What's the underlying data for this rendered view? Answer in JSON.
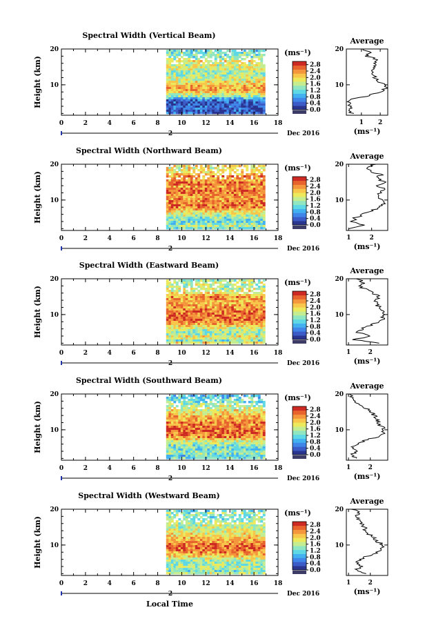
{
  "figure": {
    "xlabel": "Local Time",
    "date_label": "Dec 2016",
    "day_marker": "2",
    "colorbar_unit": "(ms⁻¹)",
    "avg_title": "Average",
    "avg_xlabel": "(ms⁻¹)",
    "ylabel": "Height (km)",
    "colors": {
      "scale": [
        "#2a3590",
        "#3b5cc6",
        "#3f86e8",
        "#43b0f0",
        "#5fd8e6",
        "#8fe6c0",
        "#c4ec90",
        "#ecea5c",
        "#f8c64a",
        "#f4963c",
        "#e8642e",
        "#cc2a22"
      ],
      "bottom_swatch": "#3c3c66",
      "marker": "#2233aa"
    }
  },
  "chart_data": [
    {
      "type": "heatmap",
      "title": "Spectral Width (Vertical Beam)",
      "x_ticks": [
        "0",
        "2",
        "4",
        "6",
        "8",
        "10",
        "12",
        "14",
        "16",
        "18"
      ],
      "xlim": [
        0,
        18
      ],
      "data_x_range": [
        8.7,
        16.8
      ],
      "y_ticks": [
        "10",
        "20"
      ],
      "ylim": [
        1.5,
        20
      ],
      "colorbar_ticks": [
        "0.0",
        "0.4",
        "0.8",
        "1.2",
        "1.6",
        "2.0",
        "2.4",
        "2.8"
      ],
      "colorbar_range": [
        0,
        3.0
      ],
      "profile": [
        [
          2,
          0.5
        ],
        [
          3,
          0.35
        ],
        [
          4,
          0.45
        ],
        [
          5,
          0.3
        ],
        [
          6,
          0.55
        ],
        [
          7,
          1.4
        ],
        [
          8,
          2.0
        ],
        [
          9,
          2.3
        ],
        [
          10,
          2.2
        ],
        [
          11,
          1.9
        ],
        [
          12,
          1.7
        ],
        [
          13,
          1.6
        ],
        [
          14,
          1.5
        ],
        [
          15,
          1.8
        ],
        [
          16,
          1.6
        ],
        [
          17,
          1.9
        ],
        [
          18,
          1.3
        ],
        [
          19,
          1.4
        ],
        [
          20,
          1.1
        ]
      ],
      "avg_x_ticks": [
        "1",
        "2"
      ],
      "avg_xlim": [
        0.2,
        2.4
      ]
    },
    {
      "type": "heatmap",
      "title": "Spectral Width (Northward Beam)",
      "x_ticks": [
        "0",
        "2",
        "4",
        "6",
        "8",
        "10",
        "12",
        "14",
        "16",
        "18"
      ],
      "xlim": [
        0,
        18
      ],
      "data_x_range": [
        8.7,
        16.8
      ],
      "y_ticks": [
        "10",
        "20"
      ],
      "ylim": [
        1.5,
        20
      ],
      "colorbar_ticks": [
        "0.0",
        "0.4",
        "0.8",
        "1.2",
        "1.6",
        "2.0",
        "2.4",
        "2.8"
      ],
      "colorbar_range": [
        0,
        3.0
      ],
      "profile": [
        [
          2,
          1.1
        ],
        [
          3,
          1.6
        ],
        [
          4,
          1.2
        ],
        [
          5,
          1.3
        ],
        [
          6,
          1.6
        ],
        [
          7,
          2.0
        ],
        [
          8,
          2.3
        ],
        [
          9,
          2.5
        ],
        [
          10,
          2.4
        ],
        [
          11,
          2.3
        ],
        [
          12,
          2.4
        ],
        [
          13,
          2.5
        ],
        [
          14,
          2.3
        ],
        [
          15,
          2.6
        ],
        [
          16,
          2.2
        ],
        [
          17,
          2.4
        ],
        [
          18,
          2.0
        ],
        [
          19,
          1.8
        ],
        [
          20,
          2.1
        ]
      ],
      "avg_x_ticks": [
        "1",
        "2"
      ],
      "avg_xlim": [
        0.9,
        2.7
      ]
    },
    {
      "type": "heatmap",
      "title": "Spectral Width (Eastward Beam)",
      "x_ticks": [
        "0",
        "2",
        "4",
        "6",
        "8",
        "10",
        "12",
        "14",
        "16",
        "18"
      ],
      "xlim": [
        0,
        18
      ],
      "data_x_range": [
        8.7,
        16.8
      ],
      "y_ticks": [
        "10",
        "20"
      ],
      "ylim": [
        1.5,
        20
      ],
      "colorbar_ticks": [
        "0.0",
        "0.4",
        "0.8",
        "1.2",
        "1.6",
        "2.0",
        "2.4",
        "2.8"
      ],
      "colorbar_range": [
        0,
        3.0
      ],
      "profile": [
        [
          2,
          2.4
        ],
        [
          3,
          1.3
        ],
        [
          4,
          2.0
        ],
        [
          5,
          1.4
        ],
        [
          6,
          1.6
        ],
        [
          7,
          2.0
        ],
        [
          8,
          2.4
        ],
        [
          9,
          2.6
        ],
        [
          10,
          2.6
        ],
        [
          11,
          2.5
        ],
        [
          12,
          2.4
        ],
        [
          13,
          2.3
        ],
        [
          14,
          2.2
        ],
        [
          15,
          2.4
        ],
        [
          16,
          2.1
        ],
        [
          17,
          1.8
        ],
        [
          18,
          1.5
        ],
        [
          19,
          1.7
        ],
        [
          20,
          1.4
        ]
      ],
      "avg_x_ticks": [
        "1",
        "2"
      ],
      "avg_xlim": [
        0.9,
        2.8
      ]
    },
    {
      "type": "heatmap",
      "title": "Spectral Width (Southward Beam)",
      "x_ticks": [
        "0",
        "2",
        "4",
        "6",
        "8",
        "10",
        "12",
        "14",
        "16",
        "18"
      ],
      "xlim": [
        0,
        18
      ],
      "data_x_range": [
        8.7,
        16.8
      ],
      "y_ticks": [
        "10",
        "20"
      ],
      "ylim": [
        1.5,
        20
      ],
      "colorbar_ticks": [
        "0.0",
        "0.4",
        "0.8",
        "1.2",
        "1.6",
        "2.0",
        "2.4",
        "2.8"
      ],
      "colorbar_range": [
        0,
        3.0
      ],
      "profile": [
        [
          2,
          1.3
        ],
        [
          3,
          1.1
        ],
        [
          4,
          1.5
        ],
        [
          5,
          1.2
        ],
        [
          6,
          1.4
        ],
        [
          7,
          1.7
        ],
        [
          8,
          2.3
        ],
        [
          9,
          2.6
        ],
        [
          10,
          2.6
        ],
        [
          11,
          2.5
        ],
        [
          12,
          2.4
        ],
        [
          13,
          2.3
        ],
        [
          14,
          2.2
        ],
        [
          15,
          2.0
        ],
        [
          16,
          1.8
        ],
        [
          17,
          1.6
        ],
        [
          18,
          1.3
        ],
        [
          19,
          1.2
        ],
        [
          20,
          1.0
        ]
      ],
      "avg_x_ticks": [
        "1",
        "2"
      ],
      "avg_xlim": [
        0.9,
        2.8
      ]
    },
    {
      "type": "heatmap",
      "title": "Spectral Width (Westward Beam)",
      "x_ticks": [
        "0",
        "2",
        "4",
        "6",
        "8",
        "10",
        "12",
        "14",
        "16",
        "18"
      ],
      "xlim": [
        0,
        18
      ],
      "data_x_range": [
        8.7,
        16.8
      ],
      "y_ticks": [
        "10",
        "20"
      ],
      "ylim": [
        1.5,
        20
      ],
      "colorbar_ticks": [
        "0.0",
        "0.4",
        "0.8",
        "1.2",
        "1.6",
        "2.0",
        "2.4",
        "2.8"
      ],
      "colorbar_range": [
        0,
        3.0
      ],
      "profile": [
        [
          2,
          1.8
        ],
        [
          3,
          1.3
        ],
        [
          4,
          1.6
        ],
        [
          5,
          1.4
        ],
        [
          6,
          1.6
        ],
        [
          7,
          1.9
        ],
        [
          8,
          2.3
        ],
        [
          9,
          2.5
        ],
        [
          10,
          2.6
        ],
        [
          11,
          2.3
        ],
        [
          12,
          2.2
        ],
        [
          13,
          1.9
        ],
        [
          14,
          1.8
        ],
        [
          15,
          1.7
        ],
        [
          16,
          1.6
        ],
        [
          17,
          1.5
        ],
        [
          18,
          1.3
        ],
        [
          19,
          1.5
        ],
        [
          20,
          1.2
        ]
      ],
      "avg_x_ticks": [
        "1",
        "2"
      ],
      "avg_xlim": [
        0.9,
        2.8
      ]
    }
  ]
}
